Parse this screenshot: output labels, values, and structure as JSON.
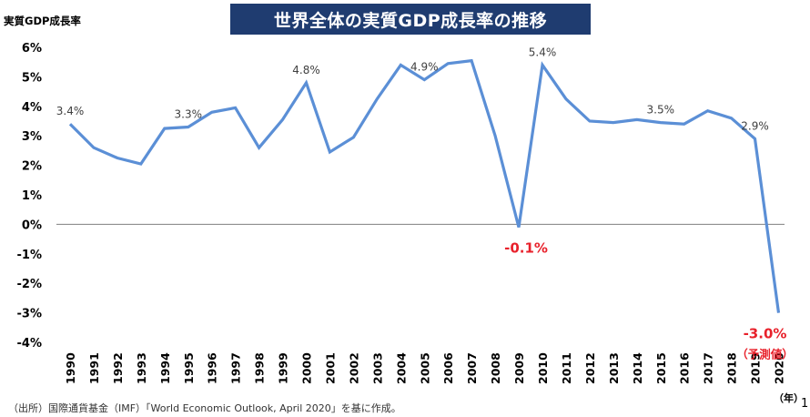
{
  "header": {
    "title": "世界全体の実質GDP成長率の推移"
  },
  "footer": {
    "source": "（出所）国際通貨基金（IMF）「World Economic Outlook, April 2020」を基に作成。",
    "page_number": "1"
  },
  "chart_data": {
    "type": "line",
    "title": "世界全体の実質GDP成長率の推移",
    "ylabel": "実質GDP成長率",
    "xlabel": "（年）",
    "ylim": [
      -4,
      6
    ],
    "yticks": [
      "6%",
      "5%",
      "4%",
      "3%",
      "2%",
      "1%",
      "0%",
      "-1%",
      "-2%",
      "-3%",
      "-4%"
    ],
    "ytick_values": [
      6,
      5,
      4,
      3,
      2,
      1,
      0,
      -1,
      -2,
      -3,
      -4
    ],
    "x": [
      "1990",
      "1991",
      "1992",
      "1993",
      "1994",
      "1995",
      "1996",
      "1997",
      "1998",
      "1999",
      "2000",
      "2001",
      "2002",
      "2003",
      "2004",
      "2005",
      "2006",
      "2007",
      "2008",
      "2009",
      "2010",
      "2011",
      "2012",
      "2013",
      "2014",
      "2015",
      "2016",
      "2017",
      "2018",
      "2019",
      "2020"
    ],
    "series": [
      {
        "color": "#5b8fd6",
        "values": [
          3.4,
          2.6,
          2.25,
          2.05,
          3.25,
          3.3,
          3.8,
          3.95,
          2.6,
          3.55,
          4.8,
          2.45,
          2.95,
          4.25,
          5.4,
          4.9,
          5.45,
          5.55,
          3.0,
          -0.1,
          5.4,
          4.25,
          3.5,
          3.45,
          3.55,
          3.45,
          3.4,
          3.85,
          3.6,
          2.9,
          -3.0
        ]
      }
    ],
    "annotations": [
      {
        "x": "1990",
        "text": "3.4%",
        "highlight": false
      },
      {
        "x": "1995",
        "text": "3.3%",
        "highlight": false
      },
      {
        "x": "2000",
        "text": "4.8%",
        "highlight": false
      },
      {
        "x": "2005",
        "text": "4.9%",
        "highlight": false
      },
      {
        "x": "2009",
        "text": "-0.1%",
        "highlight": true
      },
      {
        "x": "2010",
        "text": "5.4%",
        "highlight": false
      },
      {
        "x": "2015",
        "text": "3.5%",
        "highlight": false
      },
      {
        "x": "2019",
        "text": "2.9%",
        "highlight": false
      },
      {
        "x": "2020",
        "text": "-3.0%",
        "highlight": true,
        "subtext": "（予測値）"
      }
    ],
    "highlight_color": "#e8212b",
    "grid": false
  }
}
